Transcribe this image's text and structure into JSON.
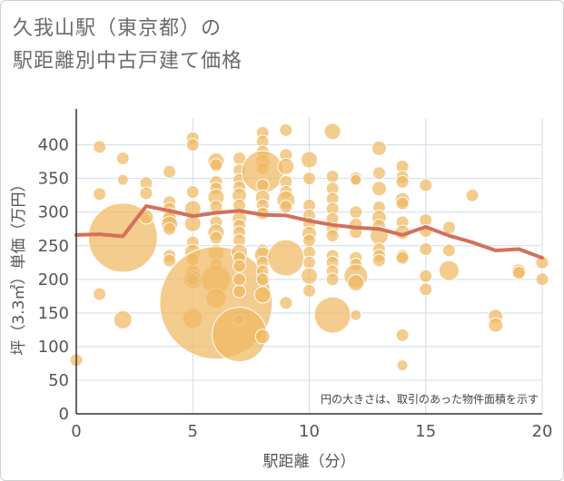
{
  "chart_data": {
    "type": "scatter",
    "title_lines": [
      "久我山駅（東京都）の",
      "駅距離別中古戸建て価格"
    ],
    "xlabel": "駅距離（分）",
    "ylabel": "坪（3.3㎡）単価（万円）",
    "xlim": [
      0,
      20
    ],
    "ylim": [
      0,
      440
    ],
    "xticks": [
      "0",
      "5",
      "10",
      "15",
      "20"
    ],
    "yticks": [
      "0",
      "50",
      "100",
      "150",
      "200",
      "250",
      "300",
      "350",
      "400"
    ],
    "annotation": "円の大きさは、取引のあった物件面積を示す",
    "grid": true,
    "colors": {
      "bubble_fill": "#F0B862",
      "bubble_stroke": "#ffffff",
      "line": "#D4705A",
      "grid": "#d0dce8",
      "axis": "#333333"
    },
    "bubble_series": [
      {
        "x": 0,
        "y": 80,
        "s": 7
      },
      {
        "x": 1,
        "y": 397,
        "s": 7
      },
      {
        "x": 1,
        "y": 327,
        "s": 7
      },
      {
        "x": 1,
        "y": 178,
        "s": 7
      },
      {
        "x": 2,
        "y": 380,
        "s": 7
      },
      {
        "x": 2,
        "y": 348,
        "s": 6
      },
      {
        "x": 2,
        "y": 262,
        "s": 38
      },
      {
        "x": 2,
        "y": 140,
        "s": 10
      },
      {
        "x": 3,
        "y": 343,
        "s": 7
      },
      {
        "x": 3,
        "y": 328,
        "s": 7
      },
      {
        "x": 3,
        "y": 293,
        "s": 8
      },
      {
        "x": 4,
        "y": 360,
        "s": 7
      },
      {
        "x": 4,
        "y": 315,
        "s": 7
      },
      {
        "x": 4,
        "y": 305,
        "s": 7
      },
      {
        "x": 4,
        "y": 297,
        "s": 7
      },
      {
        "x": 4,
        "y": 290,
        "s": 8
      },
      {
        "x": 4,
        "y": 282,
        "s": 9
      },
      {
        "x": 4,
        "y": 275,
        "s": 7
      },
      {
        "x": 4,
        "y": 235,
        "s": 7
      },
      {
        "x": 4,
        "y": 228,
        "s": 7
      },
      {
        "x": 5,
        "y": 410,
        "s": 7
      },
      {
        "x": 5,
        "y": 400,
        "s": 7
      },
      {
        "x": 5,
        "y": 330,
        "s": 7
      },
      {
        "x": 5,
        "y": 305,
        "s": 9
      },
      {
        "x": 5,
        "y": 283,
        "s": 9
      },
      {
        "x": 5,
        "y": 255,
        "s": 7
      },
      {
        "x": 5,
        "y": 240,
        "s": 9
      },
      {
        "x": 5,
        "y": 230,
        "s": 7
      },
      {
        "x": 5,
        "y": 210,
        "s": 8
      },
      {
        "x": 5,
        "y": 200,
        "s": 10
      },
      {
        "x": 5,
        "y": 200,
        "s": 7
      },
      {
        "x": 5,
        "y": 142,
        "s": 11
      },
      {
        "x": 6,
        "y": 376,
        "s": 9
      },
      {
        "x": 6,
        "y": 370,
        "s": 7
      },
      {
        "x": 6,
        "y": 345,
        "s": 7
      },
      {
        "x": 6,
        "y": 335,
        "s": 7
      },
      {
        "x": 6,
        "y": 322,
        "s": 9
      },
      {
        "x": 6,
        "y": 308,
        "s": 7
      },
      {
        "x": 6,
        "y": 285,
        "s": 7
      },
      {
        "x": 6,
        "y": 270,
        "s": 9
      },
      {
        "x": 6,
        "y": 262,
        "s": 7
      },
      {
        "x": 6,
        "y": 240,
        "s": 9
      },
      {
        "x": 6,
        "y": 222,
        "s": 7
      },
      {
        "x": 6,
        "y": 200,
        "s": 16
      },
      {
        "x": 6,
        "y": 172,
        "s": 11
      },
      {
        "x": 6,
        "y": 165,
        "s": 62
      },
      {
        "x": 7,
        "y": 380,
        "s": 7
      },
      {
        "x": 7,
        "y": 362,
        "s": 7
      },
      {
        "x": 7,
        "y": 348,
        "s": 7
      },
      {
        "x": 7,
        "y": 337,
        "s": 7
      },
      {
        "x": 7,
        "y": 325,
        "s": 8
      },
      {
        "x": 7,
        "y": 310,
        "s": 7
      },
      {
        "x": 7,
        "y": 290,
        "s": 8
      },
      {
        "x": 7,
        "y": 280,
        "s": 7
      },
      {
        "x": 7,
        "y": 270,
        "s": 7
      },
      {
        "x": 7,
        "y": 258,
        "s": 7
      },
      {
        "x": 7,
        "y": 240,
        "s": 9
      },
      {
        "x": 7,
        "y": 232,
        "s": 7
      },
      {
        "x": 7,
        "y": 220,
        "s": 7
      },
      {
        "x": 7,
        "y": 200,
        "s": 7
      },
      {
        "x": 7,
        "y": 182,
        "s": 7
      },
      {
        "x": 7,
        "y": 140,
        "s": 6
      },
      {
        "x": 7,
        "y": 118,
        "s": 30
      },
      {
        "x": 8,
        "y": 418,
        "s": 7
      },
      {
        "x": 8,
        "y": 405,
        "s": 7
      },
      {
        "x": 8,
        "y": 390,
        "s": 7
      },
      {
        "x": 8,
        "y": 375,
        "s": 8
      },
      {
        "x": 8,
        "y": 365,
        "s": 7
      },
      {
        "x": 8,
        "y": 360,
        "s": 23
      },
      {
        "x": 8,
        "y": 340,
        "s": 7
      },
      {
        "x": 8,
        "y": 322,
        "s": 8
      },
      {
        "x": 8,
        "y": 310,
        "s": 7
      },
      {
        "x": 8,
        "y": 298,
        "s": 7
      },
      {
        "x": 8,
        "y": 243,
        "s": 7
      },
      {
        "x": 8,
        "y": 236,
        "s": 9
      },
      {
        "x": 8,
        "y": 225,
        "s": 7
      },
      {
        "x": 8,
        "y": 212,
        "s": 7
      },
      {
        "x": 8,
        "y": 200,
        "s": 7
      },
      {
        "x": 8,
        "y": 177,
        "s": 9
      },
      {
        "x": 8,
        "y": 115,
        "s": 8
      },
      {
        "x": 9,
        "y": 422,
        "s": 7
      },
      {
        "x": 9,
        "y": 385,
        "s": 7
      },
      {
        "x": 9,
        "y": 368,
        "s": 9
      },
      {
        "x": 9,
        "y": 345,
        "s": 7
      },
      {
        "x": 9,
        "y": 330,
        "s": 7
      },
      {
        "x": 9,
        "y": 318,
        "s": 10
      },
      {
        "x": 9,
        "y": 308,
        "s": 7
      },
      {
        "x": 9,
        "y": 232,
        "s": 20
      },
      {
        "x": 9,
        "y": 165,
        "s": 7
      },
      {
        "x": 10,
        "y": 378,
        "s": 9
      },
      {
        "x": 10,
        "y": 350,
        "s": 7
      },
      {
        "x": 10,
        "y": 310,
        "s": 7
      },
      {
        "x": 10,
        "y": 295,
        "s": 7
      },
      {
        "x": 10,
        "y": 283,
        "s": 7
      },
      {
        "x": 10,
        "y": 268,
        "s": 8
      },
      {
        "x": 10,
        "y": 258,
        "s": 7
      },
      {
        "x": 10,
        "y": 240,
        "s": 7
      },
      {
        "x": 10,
        "y": 225,
        "s": 7
      },
      {
        "x": 10,
        "y": 205,
        "s": 9
      },
      {
        "x": 10,
        "y": 183,
        "s": 7
      },
      {
        "x": 11,
        "y": 420,
        "s": 9
      },
      {
        "x": 11,
        "y": 353,
        "s": 7
      },
      {
        "x": 11,
        "y": 335,
        "s": 7
      },
      {
        "x": 11,
        "y": 320,
        "s": 7
      },
      {
        "x": 11,
        "y": 305,
        "s": 7
      },
      {
        "x": 11,
        "y": 290,
        "s": 7
      },
      {
        "x": 11,
        "y": 275,
        "s": 7
      },
      {
        "x": 11,
        "y": 265,
        "s": 7
      },
      {
        "x": 11,
        "y": 235,
        "s": 7
      },
      {
        "x": 11,
        "y": 225,
        "s": 7
      },
      {
        "x": 11,
        "y": 212,
        "s": 7
      },
      {
        "x": 11,
        "y": 200,
        "s": 7
      },
      {
        "x": 11,
        "y": 147,
        "s": 20
      },
      {
        "x": 12,
        "y": 350,
        "s": 7
      },
      {
        "x": 12,
        "y": 348,
        "s": 6
      },
      {
        "x": 12,
        "y": 300,
        "s": 7
      },
      {
        "x": 12,
        "y": 282,
        "s": 7
      },
      {
        "x": 12,
        "y": 270,
        "s": 7
      },
      {
        "x": 12,
        "y": 232,
        "s": 7
      },
      {
        "x": 12,
        "y": 222,
        "s": 7
      },
      {
        "x": 12,
        "y": 205,
        "s": 13
      },
      {
        "x": 12,
        "y": 195,
        "s": 9
      },
      {
        "x": 12,
        "y": 147,
        "s": 6
      },
      {
        "x": 13,
        "y": 395,
        "s": 8
      },
      {
        "x": 13,
        "y": 358,
        "s": 7
      },
      {
        "x": 13,
        "y": 335,
        "s": 8
      },
      {
        "x": 13,
        "y": 307,
        "s": 7
      },
      {
        "x": 13,
        "y": 292,
        "s": 8
      },
      {
        "x": 13,
        "y": 280,
        "s": 7
      },
      {
        "x": 13,
        "y": 265,
        "s": 10
      },
      {
        "x": 13,
        "y": 245,
        "s": 7
      },
      {
        "x": 13,
        "y": 235,
        "s": 7
      },
      {
        "x": 13,
        "y": 228,
        "s": 7
      },
      {
        "x": 14,
        "y": 368,
        "s": 7
      },
      {
        "x": 14,
        "y": 352,
        "s": 7
      },
      {
        "x": 14,
        "y": 345,
        "s": 7
      },
      {
        "x": 14,
        "y": 318,
        "s": 8
      },
      {
        "x": 14,
        "y": 313,
        "s": 7
      },
      {
        "x": 14,
        "y": 285,
        "s": 7
      },
      {
        "x": 14,
        "y": 270,
        "s": 8
      },
      {
        "x": 14,
        "y": 235,
        "s": 7
      },
      {
        "x": 14,
        "y": 232,
        "s": 7
      },
      {
        "x": 14,
        "y": 117,
        "s": 7
      },
      {
        "x": 14,
        "y": 72,
        "s": 6
      },
      {
        "x": 15,
        "y": 340,
        "s": 7
      },
      {
        "x": 15,
        "y": 288,
        "s": 7
      },
      {
        "x": 15,
        "y": 272,
        "s": 7
      },
      {
        "x": 15,
        "y": 245,
        "s": 7
      },
      {
        "x": 15,
        "y": 205,
        "s": 7
      },
      {
        "x": 15,
        "y": 185,
        "s": 7
      },
      {
        "x": 16,
        "y": 277,
        "s": 7
      },
      {
        "x": 16,
        "y": 243,
        "s": 7
      },
      {
        "x": 16,
        "y": 213,
        "s": 11
      },
      {
        "x": 17,
        "y": 325,
        "s": 7
      },
      {
        "x": 18,
        "y": 145,
        "s": 8
      },
      {
        "x": 18,
        "y": 132,
        "s": 8
      },
      {
        "x": 19,
        "y": 212,
        "s": 8
      },
      {
        "x": 19,
        "y": 210,
        "s": 7
      },
      {
        "x": 20,
        "y": 225,
        "s": 7
      },
      {
        "x": 20,
        "y": 200,
        "s": 7
      }
    ],
    "line_series": {
      "x": [
        0,
        1,
        2,
        3,
        4,
        5,
        6,
        7,
        8,
        9,
        10,
        11,
        12,
        13,
        14,
        15,
        16,
        17,
        18,
        19,
        20
      ],
      "y": [
        266,
        267,
        264,
        309,
        302,
        294,
        299,
        302,
        296,
        295,
        287,
        281,
        277,
        275,
        266,
        278,
        265,
        255,
        243,
        245,
        232
      ]
    }
  }
}
